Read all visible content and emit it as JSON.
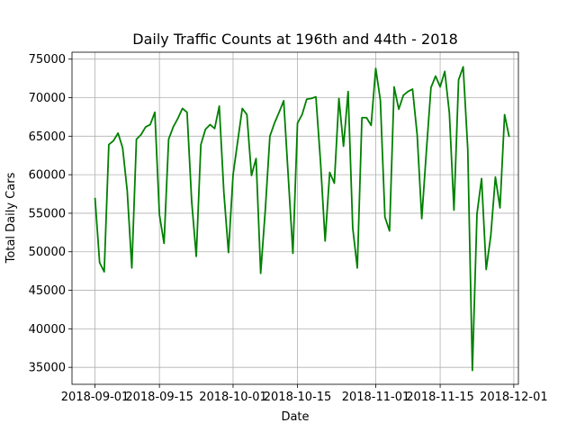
{
  "chart_data": {
    "type": "line",
    "title": "Daily Traffic Counts at 196th and 44th - 2018",
    "xlabel": "Date",
    "ylabel": "Total Daily Cars",
    "xlim": [
      "2018-08-27",
      "2018-12-02"
    ],
    "ylim": [
      32800,
      75900
    ],
    "grid": true,
    "line_color": "#008000",
    "x_ticks": [
      "2018-09-01",
      "2018-09-15",
      "2018-10-01",
      "2018-10-15",
      "2018-11-01",
      "2018-11-15",
      "2018-12-01"
    ],
    "x_tick_labels": [
      "2018-09-01",
      "2018-09-15",
      "2018-10-01",
      "2018-10-15",
      "2018-11-01",
      "2018-11-15",
      "2018-12-01"
    ],
    "y_ticks": [
      35000,
      40000,
      45000,
      50000,
      55000,
      60000,
      65000,
      70000,
      75000
    ],
    "y_tick_labels": [
      "35000",
      "40000",
      "45000",
      "50000",
      "55000",
      "60000",
      "65000",
      "70000",
      "75000"
    ],
    "series": [
      {
        "x": [
          "2018-09-01",
          "2018-09-02",
          "2018-09-03",
          "2018-09-04",
          "2018-09-05",
          "2018-09-06",
          "2018-09-07",
          "2018-09-08",
          "2018-09-09",
          "2018-09-10",
          "2018-09-11",
          "2018-09-12",
          "2018-09-13",
          "2018-09-14",
          "2018-09-15",
          "2018-09-16",
          "2018-09-17",
          "2018-09-18",
          "2018-09-19",
          "2018-09-20",
          "2018-09-21",
          "2018-09-22",
          "2018-09-23",
          "2018-09-24",
          "2018-09-25",
          "2018-09-26",
          "2018-09-27",
          "2018-09-28",
          "2018-09-29",
          "2018-09-30",
          "2018-10-01",
          "2018-10-02",
          "2018-10-03",
          "2018-10-04",
          "2018-10-05",
          "2018-10-06",
          "2018-10-07",
          "2018-10-08",
          "2018-10-09",
          "2018-10-10",
          "2018-10-11",
          "2018-10-12",
          "2018-10-13",
          "2018-10-14",
          "2018-10-15",
          "2018-10-16",
          "2018-10-17",
          "2018-10-18",
          "2018-10-19",
          "2018-10-20",
          "2018-10-21",
          "2018-10-22",
          "2018-10-23",
          "2018-10-24",
          "2018-10-25",
          "2018-10-26",
          "2018-10-27",
          "2018-10-28",
          "2018-10-29",
          "2018-10-30",
          "2018-10-31",
          "2018-11-01",
          "2018-11-02",
          "2018-11-03",
          "2018-11-04",
          "2018-11-05",
          "2018-11-06",
          "2018-11-07",
          "2018-11-08",
          "2018-11-09",
          "2018-11-10",
          "2018-11-11",
          "2018-11-12",
          "2018-11-13",
          "2018-11-14",
          "2018-11-15",
          "2018-11-16",
          "2018-11-17",
          "2018-11-18",
          "2018-11-19",
          "2018-11-20",
          "2018-11-21",
          "2018-11-22",
          "2018-11-23",
          "2018-11-24",
          "2018-11-25",
          "2018-11-26",
          "2018-11-27",
          "2018-11-28",
          "2018-11-29",
          "2018-11-30"
        ],
        "values": [
          57000,
          48600,
          47400,
          63900,
          64400,
          65400,
          63500,
          57900,
          47900,
          64600,
          65200,
          66200,
          66500,
          68100,
          54800,
          51100,
          64600,
          66200,
          67300,
          68600,
          68100,
          56600,
          49400,
          63900,
          65900,
          66500,
          66000,
          68900,
          57700,
          49900,
          60000,
          64300,
          68600,
          67800,
          59900,
          62100,
          47200,
          55400,
          65000,
          66700,
          68100,
          69600,
          59700,
          49800,
          66700,
          67800,
          69800,
          69900,
          70100,
          61700,
          51400,
          60300,
          58900,
          69900,
          63700,
          70800,
          53100,
          47900,
          67400,
          67400,
          66400,
          73800,
          69700,
          54500,
          52700,
          71400,
          68500,
          70300,
          70800,
          71100,
          65200,
          54300,
          63000,
          71300,
          72800,
          71400,
          73400,
          68000,
          55400,
          72300,
          74000,
          63300,
          34600,
          54900,
          59500,
          47700,
          52100,
          59700,
          55700,
          67800,
          64900
        ]
      }
    ]
  }
}
